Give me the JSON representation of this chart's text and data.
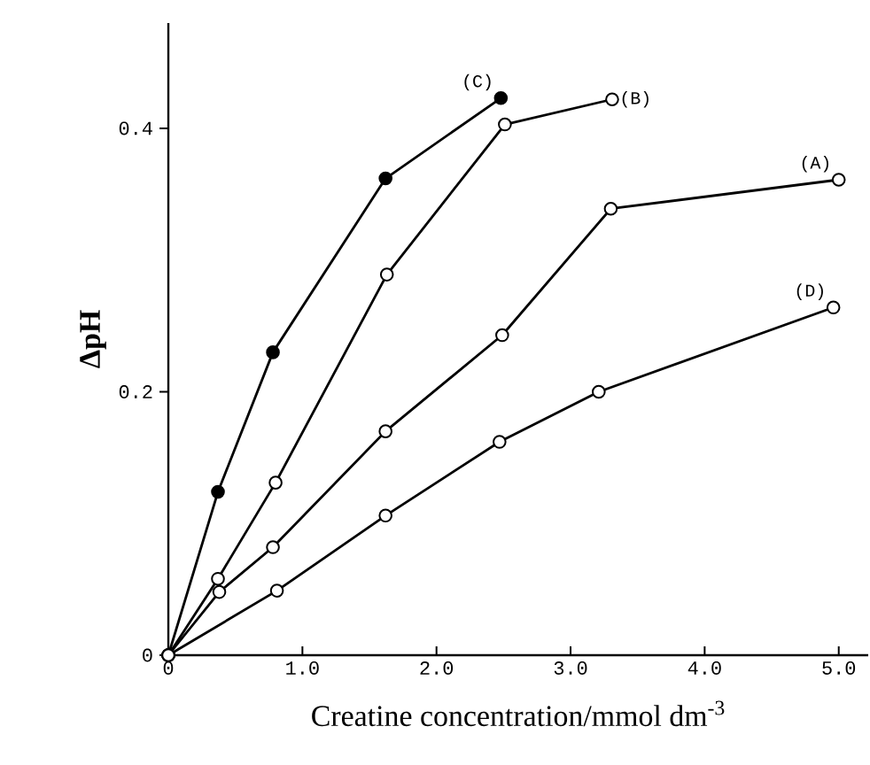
{
  "chart_data": {
    "type": "line",
    "xlabel": "Creatine concentration/mmol dm$^{-3}$",
    "ylabel": "ΔpH",
    "xlim": [
      0,
      5.22
    ],
    "ylim": [
      0,
      0.48
    ],
    "xticks": [
      {
        "value": 0,
        "label": "0"
      },
      {
        "value": 1,
        "label": "1.0"
      },
      {
        "value": 2,
        "label": "2.0"
      },
      {
        "value": 3,
        "label": "3.0"
      },
      {
        "value": 4,
        "label": "4.0"
      },
      {
        "value": 5,
        "label": "5.0"
      }
    ],
    "yticks": [
      {
        "value": 0,
        "label": "0"
      },
      {
        "value": 0.2,
        "label": "0.2"
      },
      {
        "value": 0.4,
        "label": "0.4"
      }
    ],
    "marker": "circle",
    "series": [
      {
        "name": "(C)",
        "color": "#000000",
        "x": [
          0,
          0.37,
          0.78,
          1.62,
          2.48
        ],
        "values": [
          0,
          0.124,
          0.23,
          0.362,
          0.423
        ]
      },
      {
        "name": "(B)",
        "color": "#000000",
        "x": [
          0,
          0.37,
          0.8,
          1.63,
          2.51,
          3.31
        ],
        "values": [
          0,
          0.058,
          0.131,
          0.289,
          0.403,
          0.422
        ]
      },
      {
        "name": "(A)",
        "color": "#000000",
        "x": [
          0,
          0.38,
          0.78,
          1.62,
          2.49,
          3.3,
          5.0
        ],
        "values": [
          0,
          0.048,
          0.082,
          0.17,
          0.243,
          0.339,
          0.361
        ]
      },
      {
        "name": "(D)",
        "color": "#000000",
        "x": [
          0,
          0.81,
          1.62,
          2.47,
          3.21,
          4.96
        ],
        "values": [
          0,
          0.049,
          0.106,
          0.162,
          0.2,
          0.264
        ]
      }
    ]
  }
}
